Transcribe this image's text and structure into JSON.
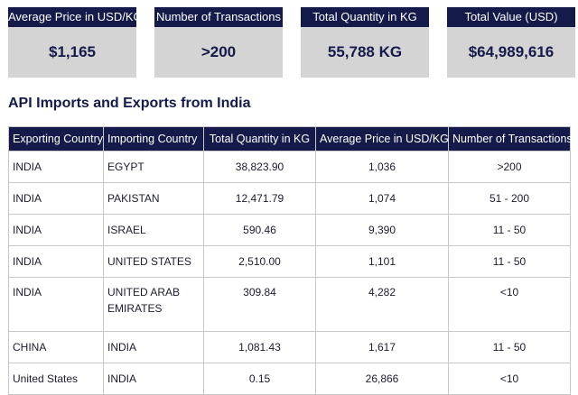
{
  "kpis": [
    {
      "label": "Average Price in USD/KG",
      "value": "$1,165"
    },
    {
      "label": "Number of Transactions",
      "value": ">200"
    },
    {
      "label": "Total Quantity in KG",
      "value": "55,788 KG"
    },
    {
      "label": "Total Value (USD)",
      "value": "$64,989,616"
    }
  ],
  "section_title": "API Imports and Exports from India",
  "table": {
    "headers": [
      "Exporting Country",
      "Importing Country",
      "Total Quantity in KG",
      "Average Price in USD/KG",
      "Number of Transactions"
    ],
    "rows": [
      [
        "INDIA",
        "EGYPT",
        "38,823.90",
        "1,036",
        ">200"
      ],
      [
        "INDIA",
        "PAKISTAN",
        "12,471.79",
        "1,074",
        "51 - 200"
      ],
      [
        "INDIA",
        "ISRAEL",
        "590.46",
        "9,390",
        "11 - 50"
      ],
      [
        "INDIA",
        "UNITED STATES",
        "2,510.00",
        "1,101",
        "11 - 50"
      ],
      [
        "INDIA",
        "UNITED ARAB EMIRATES",
        "309.84",
        "4,282",
        "<10"
      ],
      [
        "CHINA",
        "INDIA",
        "1,081.43",
        "1,617",
        "11 - 50"
      ],
      [
        "United States",
        "INDIA",
        "0.15",
        "26,866",
        "<10"
      ]
    ]
  },
  "colors": {
    "header_bg": "#141a4a",
    "card_bg": "#d4d4d4",
    "value_text": "#141a4a"
  }
}
